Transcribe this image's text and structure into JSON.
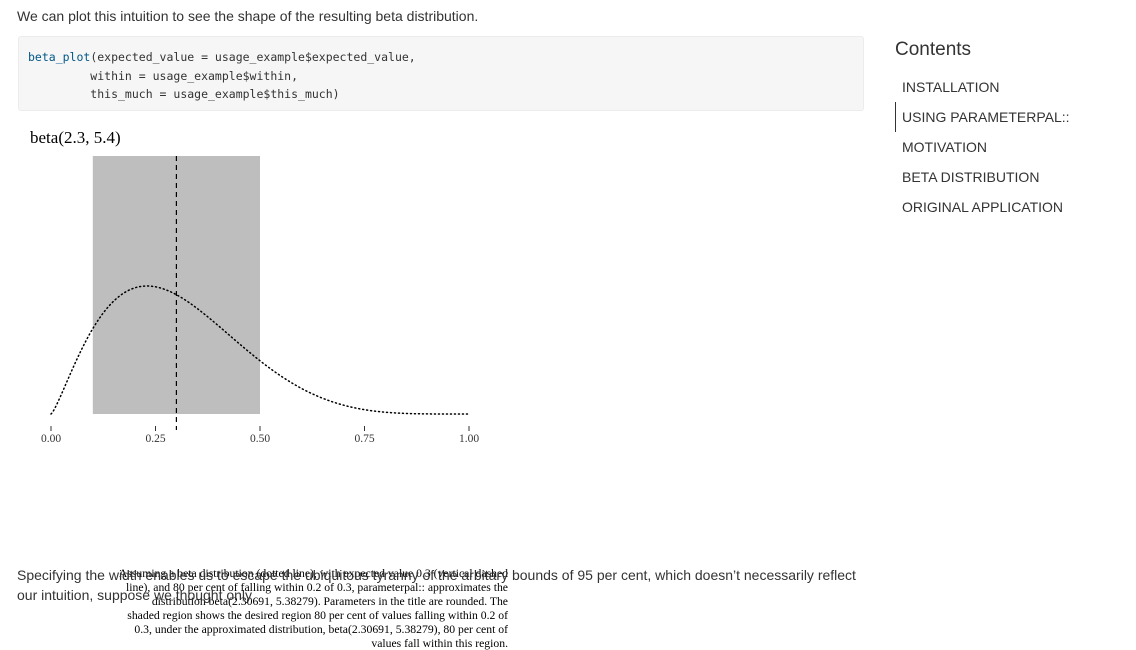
{
  "intro_text": "We can plot this intuition to see the shape of the resulting beta distribution.",
  "code": {
    "line1_fn": "beta_plot",
    "line1_rest": "(expected_value = usage_example$expected_value,",
    "line2": "         within = usage_example$within,",
    "line3": "         this_much = usage_example$this_much)"
  },
  "chart_data": {
    "type": "line",
    "title": "beta(2.3, 5.4)",
    "xlabel": "",
    "ylabel": "",
    "xlim": [
      0,
      1
    ],
    "x_ticks": [
      "0.00",
      "0.25",
      "0.50",
      "0.75",
      "1.00"
    ],
    "x_tick_values": [
      0,
      0.25,
      0.5,
      0.75,
      1
    ],
    "series": [
      {
        "distribution": "beta",
        "alpha": 2.30691,
        "beta": 5.38279,
        "line_style": "dotted"
      }
    ],
    "vertical_line": {
      "x": 0.3,
      "line_style": "dashed"
    },
    "shaded_region": {
      "x_from": 0.1,
      "x_to": 0.5,
      "color": "#bebebe"
    },
    "grid": false,
    "caption": "Assuming a beta distribution (dotted line), with expected value 0.3 (vertical dashed line), and 80 per cent of falling within 0.2 of 0.3, parameterpal:: approximates the distribution beta(2.30691, 5.38279). Parameters in the title are rounded. The shaded region shows the desired region 80 per cent of values falling within 0.2 of 0.3, under the approximated distribution, beta(2.30691, 5.38279), 80 per cent of values fall within this region."
  },
  "outro_text": "Specifying the width enables us to escape the ubiquitous tyranny of the arbitary bounds of 95 per cent, which doesn’t necessarily reflect our intuition, suppose we thought only",
  "toc": {
    "title": "Contents",
    "items": [
      {
        "label": "INSTALLATION",
        "active": false
      },
      {
        "label": "USING PARAMETERPAL::",
        "active": true
      },
      {
        "label": "MOTIVATION",
        "active": false
      },
      {
        "label": "BETA DISTRIBUTION",
        "active": false
      },
      {
        "label": "ORIGINAL APPLICATION",
        "active": false
      }
    ]
  }
}
